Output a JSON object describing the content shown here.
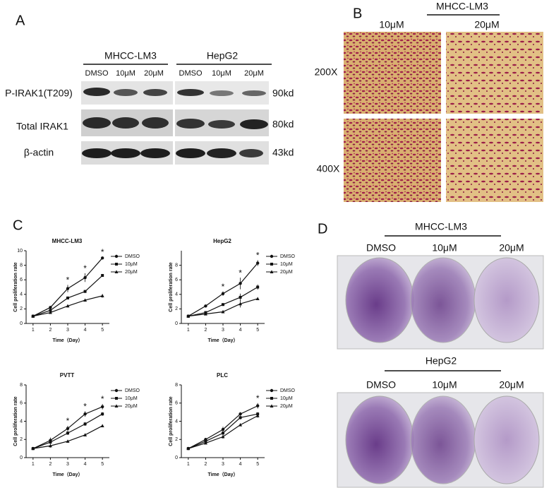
{
  "panels": {
    "a": "A",
    "b": "B",
    "c": "C",
    "d": "D"
  },
  "blot": {
    "groups": [
      {
        "name": "MHCC-LM3",
        "lanes": [
          "DMSO",
          "10μM",
          "20μM"
        ]
      },
      {
        "name": "HepG2",
        "lanes": [
          "DMSO",
          "10μM",
          "20μM"
        ]
      }
    ],
    "rows": [
      {
        "label": "P-IRAK1(T209)",
        "size": "90kd"
      },
      {
        "label": "Total IRAK1",
        "size": "80kd"
      },
      {
        "label": "β-actin",
        "size": "43kd"
      }
    ]
  },
  "invasion": {
    "group": "MHCC-LM3",
    "columns": [
      "10μM",
      "20μM"
    ],
    "rows": [
      "200X",
      "400X"
    ]
  },
  "colony": {
    "groups": [
      {
        "name": "MHCC-LM3",
        "columns": [
          "DMSO",
          "10μM",
          "20μM"
        ]
      },
      {
        "name": "HepG2",
        "columns": [
          "DMSO",
          "10μM",
          "20μM"
        ]
      }
    ]
  },
  "chart_data": [
    {
      "type": "line",
      "title": "MHCC-LM3",
      "xlabel": "Time（Day）",
      "ylabel": "Cell proliferation rate",
      "x": [
        1,
        2,
        3,
        4,
        5
      ],
      "xlim": [
        0.6,
        5.4
      ],
      "xticks": [
        1,
        2,
        3,
        4,
        5
      ],
      "ylim": [
        0,
        10
      ],
      "yticks": [
        0,
        2,
        4,
        6,
        8,
        10
      ],
      "series": [
        {
          "name": "DMSO",
          "marker": "circle",
          "color": "#111111",
          "values": [
            1,
            2.2,
            4.8,
            6.3,
            9
          ],
          "errors": [
            0.05,
            0.15,
            0.5,
            0.6,
            0.15
          ]
        },
        {
          "name": "10μM",
          "marker": "square",
          "color": "#111111",
          "values": [
            1,
            1.8,
            3.5,
            4.4,
            6.6
          ],
          "errors": [
            0.05,
            0.1,
            0.2,
            0.2,
            0.2
          ]
        },
        {
          "name": "20μM",
          "marker": "triangle",
          "color": "#111111",
          "values": [
            1,
            1.5,
            2.4,
            3.2,
            3.8
          ],
          "errors": [
            0.05,
            0.1,
            0.2,
            0.2,
            0.25
          ]
        }
      ],
      "annotations": [
        {
          "x": 3,
          "label": "*"
        },
        {
          "x": 4,
          "label": "*"
        },
        {
          "x": 5,
          "label": "*"
        }
      ]
    },
    {
      "type": "line",
      "title": "HepG2",
      "xlabel": "Time（Day）",
      "ylabel": "Cell proliferation rate",
      "x": [
        1,
        2,
        3,
        4,
        5
      ],
      "xlim": [
        0.6,
        5.4
      ],
      "xticks": [
        1,
        2,
        3,
        4,
        5
      ],
      "ylim": [
        0,
        10
      ],
      "yticks": [
        0,
        2,
        4,
        6,
        8
      ],
      "series": [
        {
          "name": "DMSO",
          "marker": "circle",
          "color": "#111111",
          "values": [
            1,
            2.4,
            4.1,
            5.5,
            8.3
          ],
          "errors": [
            0.05,
            0.15,
            0.3,
            0.8,
            0.4
          ]
        },
        {
          "name": "10μM",
          "marker": "square",
          "color": "#111111",
          "values": [
            1,
            1.5,
            2.6,
            3.6,
            5
          ],
          "errors": [
            0.05,
            0.1,
            0.15,
            0.5,
            0.35
          ]
        },
        {
          "name": "20μM",
          "marker": "triangle",
          "color": "#111111",
          "values": [
            1,
            1.3,
            1.6,
            2.7,
            3.4
          ],
          "errors": [
            0.05,
            0.1,
            0.2,
            0.5,
            0.1
          ]
        }
      ],
      "annotations": [
        {
          "x": 3,
          "label": "*"
        },
        {
          "x": 4,
          "label": "*"
        },
        {
          "x": 5,
          "label": "*"
        }
      ]
    },
    {
      "type": "line",
      "title": "PVTT",
      "xlabel": "Time（Day）",
      "ylabel": "Cell proliferation rate",
      "x": [
        1,
        2,
        3,
        4,
        5
      ],
      "xlim": [
        0.6,
        5.4
      ],
      "xticks": [
        1,
        2,
        3,
        4,
        5
      ],
      "ylim": [
        0,
        8
      ],
      "yticks": [
        0,
        2,
        4,
        6,
        8
      ],
      "series": [
        {
          "name": "DMSO",
          "marker": "circle",
          "color": "#111111",
          "values": [
            1,
            1.9,
            3.2,
            4.8,
            5.6
          ],
          "errors": [
            0.05,
            0.3,
            0.3,
            0.3,
            0.3
          ]
        },
        {
          "name": "10μM",
          "marker": "square",
          "color": "#111111",
          "values": [
            1,
            1.7,
            2.7,
            3.7,
            4.8
          ],
          "errors": [
            0.05,
            0.2,
            0.2,
            0.2,
            0.2
          ]
        },
        {
          "name": "20μM",
          "marker": "triangle",
          "color": "#111111",
          "values": [
            1,
            1.3,
            1.8,
            2.5,
            3.5
          ],
          "errors": [
            0.05,
            0.2,
            0.15,
            0.1,
            0.1
          ]
        }
      ],
      "annotations": [
        {
          "x": 3,
          "label": "*"
        },
        {
          "x": 4,
          "label": "*"
        },
        {
          "x": 5,
          "label": "*"
        }
      ]
    },
    {
      "type": "line",
      "title": "PLC",
      "xlabel": "Time（Day）",
      "ylabel": "Cell proliferation rate",
      "x": [
        1,
        2,
        3,
        4,
        5
      ],
      "xlim": [
        0.6,
        5.4
      ],
      "xticks": [
        1,
        2,
        3,
        4,
        5
      ],
      "ylim": [
        0,
        8
      ],
      "yticks": [
        0,
        2,
        4,
        6,
        8
      ],
      "series": [
        {
          "name": "DMSO",
          "marker": "circle",
          "color": "#111111",
          "values": [
            1,
            2,
            3.1,
            4.8,
            5.7
          ],
          "errors": [
            0.05,
            0.1,
            0.3,
            0.2,
            0.3
          ]
        },
        {
          "name": "10μM",
          "marker": "square",
          "color": "#111111",
          "values": [
            1,
            1.8,
            2.7,
            4.4,
            4.8
          ],
          "errors": [
            0.05,
            0.1,
            0.3,
            0.2,
            0.2
          ]
        },
        {
          "name": "20μM",
          "marker": "triangle",
          "color": "#111111",
          "values": [
            1,
            1.6,
            2.3,
            3.6,
            4.6
          ],
          "errors": [
            0.05,
            0.1,
            0.2,
            0.1,
            0.2
          ]
        }
      ],
      "annotations": [
        {
          "x": 5,
          "label": "*"
        }
      ]
    }
  ]
}
